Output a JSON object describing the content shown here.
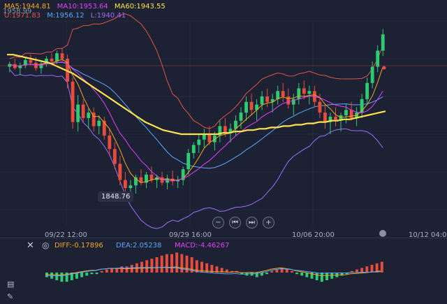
{
  "legend": {
    "ma5": {
      "label": "MA5:1944.81",
      "color": "#f5a623"
    },
    "ma10": {
      "label": "MA10:1953.64",
      "color": "#e040fb"
    },
    "ma60": {
      "label": "MA60:1943.55",
      "color": "#ffe34d"
    },
    "u": {
      "label": "U:1971.83",
      "color": "#e0544a"
    },
    "m": {
      "label": "M:1956.12",
      "color": "#5aa7ff"
    },
    "l": {
      "label": "L:1940.41",
      "color": "#a06cff"
    }
  },
  "price_scale_label": "1958.99",
  "low_marker": "1848.76",
  "x_labels": [
    "09/22 12:00",
    "09/29 16:00",
    "10/06 20:00",
    "10/12 04:00"
  ],
  "controls": {
    "zoom_out": "−",
    "prev": "⏮",
    "next": "⏭",
    "zoom_in": "+"
  },
  "macd": {
    "close_icon": "close-icon",
    "settings_icon": "settings-icon",
    "diff": "DIFF:-0.17896",
    "dea": "DEA:2.05238",
    "macd": "MACD:-4.46267",
    "diff_color": "#f5a623",
    "dea_color": "#5aa7ff",
    "macd_color": "#e040fb"
  },
  "colors": {
    "up": "#2ecc71",
    "down": "#e74c3c",
    "background": "#1c2233"
  },
  "chart_data": {
    "type": "candlestick",
    "candles": [
      [
        1946,
        1950,
        1942,
        1948
      ],
      [
        1948,
        1952,
        1944,
        1945
      ],
      [
        1945,
        1949,
        1940,
        1947
      ],
      [
        1947,
        1953,
        1945,
        1951
      ],
      [
        1951,
        1955,
        1947,
        1949
      ],
      [
        1949,
        1953,
        1943,
        1945
      ],
      [
        1945,
        1950,
        1941,
        1948
      ],
      [
        1948,
        1954,
        1946,
        1952
      ],
      [
        1952,
        1956,
        1948,
        1950
      ],
      [
        1950,
        1958,
        1948,
        1956
      ],
      [
        1956,
        1960,
        1950,
        1952
      ],
      [
        1952,
        1955,
        1930,
        1935
      ],
      [
        1935,
        1938,
        1900,
        1905
      ],
      [
        1905,
        1925,
        1898,
        1918
      ],
      [
        1918,
        1922,
        1905,
        1908
      ],
      [
        1908,
        1915,
        1900,
        1912
      ],
      [
        1912,
        1916,
        1898,
        1902
      ],
      [
        1902,
        1910,
        1896,
        1906
      ],
      [
        1906,
        1909,
        1892,
        1895
      ],
      [
        1895,
        1900,
        1880,
        1885
      ],
      [
        1885,
        1890,
        1870,
        1874
      ],
      [
        1874,
        1880,
        1858,
        1862
      ],
      [
        1862,
        1868,
        1850,
        1856
      ],
      [
        1856,
        1862,
        1849,
        1858
      ],
      [
        1858,
        1866,
        1852,
        1864
      ],
      [
        1864,
        1870,
        1858,
        1860
      ],
      [
        1860,
        1868,
        1856,
        1866
      ],
      [
        1866,
        1872,
        1860,
        1862
      ],
      [
        1862,
        1866,
        1856,
        1864
      ],
      [
        1864,
        1868,
        1858,
        1860
      ],
      [
        1860,
        1866,
        1855,
        1863
      ],
      [
        1863,
        1869,
        1858,
        1861
      ],
      [
        1861,
        1865,
        1856,
        1862
      ],
      [
        1862,
        1872,
        1858,
        1870
      ],
      [
        1870,
        1885,
        1866,
        1882
      ],
      [
        1882,
        1890,
        1878,
        1888
      ],
      [
        1888,
        1896,
        1882,
        1892
      ],
      [
        1892,
        1900,
        1886,
        1896
      ],
      [
        1896,
        1902,
        1888,
        1890
      ],
      [
        1890,
        1898,
        1884,
        1895
      ],
      [
        1895,
        1906,
        1890,
        1902
      ],
      [
        1902,
        1908,
        1894,
        1897
      ],
      [
        1897,
        1904,
        1890,
        1900
      ],
      [
        1900,
        1910,
        1895,
        1906
      ],
      [
        1906,
        1916,
        1900,
        1912
      ],
      [
        1912,
        1924,
        1906,
        1920
      ],
      [
        1920,
        1926,
        1910,
        1914
      ],
      [
        1914,
        1922,
        1906,
        1918
      ],
      [
        1918,
        1928,
        1914,
        1924
      ],
      [
        1924,
        1930,
        1916,
        1920
      ],
      [
        1920,
        1926,
        1912,
        1922
      ],
      [
        1922,
        1932,
        1918,
        1928
      ],
      [
        1928,
        1934,
        1920,
        1924
      ],
      [
        1924,
        1930,
        1915,
        1918
      ],
      [
        1918,
        1926,
        1910,
        1922
      ],
      [
        1922,
        1934,
        1918,
        1930
      ],
      [
        1930,
        1936,
        1922,
        1926
      ],
      [
        1926,
        1932,
        1918,
        1928
      ],
      [
        1928,
        1932,
        1916,
        1920
      ],
      [
        1920,
        1926,
        1908,
        1912
      ],
      [
        1912,
        1918,
        1900,
        1905
      ],
      [
        1905,
        1912,
        1896,
        1909
      ],
      [
        1909,
        1916,
        1902,
        1906
      ],
      [
        1906,
        1912,
        1898,
        1910
      ],
      [
        1910,
        1918,
        1904,
        1914
      ],
      [
        1914,
        1920,
        1906,
        1908
      ],
      [
        1908,
        1916,
        1902,
        1912
      ],
      [
        1912,
        1926,
        1908,
        1922
      ],
      [
        1922,
        1938,
        1918,
        1934
      ],
      [
        1934,
        1950,
        1930,
        1946
      ],
      [
        1946,
        1962,
        1942,
        1958
      ],
      [
        1958,
        1974,
        1954,
        1970
      ]
    ],
    "ma60": [
      1955,
      1955,
      1954,
      1953,
      1952,
      1951,
      1950,
      1949,
      1947,
      1945,
      1943,
      1941,
      1938,
      1935,
      1932,
      1929,
      1926,
      1923,
      1920,
      1917,
      1914,
      1911,
      1908,
      1905,
      1903,
      1901,
      1899,
      1898,
      1897,
      1896,
      1896,
      1896,
      1896,
      1896,
      1896,
      1896,
      1897,
      1897,
      1898,
      1898,
      1899,
      1899,
      1900,
      1900,
      1901,
      1901,
      1902,
      1902,
      1903,
      1903,
      1904,
      1904,
      1905,
      1905,
      1906,
      1906,
      1907,
      1907,
      1908,
      1909,
      1910,
      1911,
      1912,
      1913
    ],
    "macd_hist": [
      -3,
      -4,
      -5,
      -6,
      -6,
      -5,
      -4,
      -3,
      -2,
      -1,
      -1,
      1,
      2,
      3,
      3,
      4,
      4,
      5,
      6,
      7,
      8,
      9,
      10,
      11,
      12,
      12,
      13,
      12,
      11,
      10,
      8,
      7,
      6,
      5,
      4,
      3,
      2,
      1,
      1,
      -1,
      -2,
      -2,
      -3,
      -2,
      -1,
      1,
      2,
      3,
      2,
      1,
      -1,
      -2,
      -3,
      -4,
      -5,
      -6,
      -5,
      -4,
      -3,
      -2,
      -1,
      1,
      2,
      3,
      4,
      5,
      6,
      7
    ],
    "ylim": [
      1840,
      1980
    ]
  }
}
